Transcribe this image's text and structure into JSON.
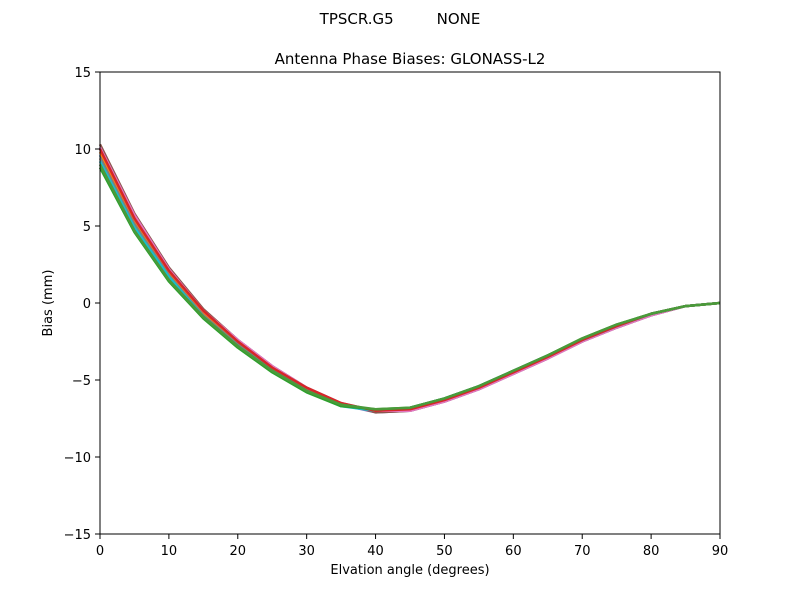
{
  "chart_data": {
    "type": "line",
    "suptitle": "TPSCR.G5         NONE",
    "title": "Antenna Phase Biases: GLONASS-L2",
    "xlabel": "Elvation angle (degrees)",
    "ylabel": "Bias (mm)",
    "xlim": [
      0,
      90
    ],
    "ylim": [
      -15,
      15
    ],
    "xticks": [
      0,
      10,
      20,
      30,
      40,
      50,
      60,
      70,
      80,
      90
    ],
    "yticks": [
      -15,
      -10,
      -5,
      0,
      5,
      10,
      15
    ],
    "xtick_labels": [
      "0",
      "10",
      "20",
      "30",
      "40",
      "50",
      "60",
      "70",
      "80",
      "90"
    ],
    "ytick_labels": [
      "−15",
      "−10",
      "−5",
      "0",
      "5",
      "10",
      "15"
    ],
    "grid": false,
    "x": [
      0,
      5,
      10,
      15,
      20,
      25,
      30,
      35,
      40,
      45,
      50,
      55,
      60,
      65,
      70,
      75,
      80,
      85,
      90
    ],
    "series": [
      {
        "color": "#1f77b4",
        "values": [
          9.6,
          5.2,
          1.9,
          -0.7,
          -2.6,
          -4.3,
          -5.6,
          -6.6,
          -7.0,
          -6.9,
          -6.3,
          -5.5,
          -4.5,
          -3.5,
          -2.4,
          -1.5,
          -0.7,
          -0.2,
          0.0
        ]
      },
      {
        "color": "#ff7f0e",
        "values": [
          9.8,
          5.4,
          2.0,
          -0.6,
          -2.5,
          -4.2,
          -5.6,
          -6.6,
          -7.0,
          -6.9,
          -6.3,
          -5.5,
          -4.5,
          -3.5,
          -2.4,
          -1.5,
          -0.7,
          -0.2,
          0.0
        ]
      },
      {
        "color": "#9467bd",
        "values": [
          10.1,
          5.6,
          2.2,
          -0.5,
          -2.4,
          -4.1,
          -5.5,
          -6.6,
          -7.1,
          -7.0,
          -6.4,
          -5.6,
          -4.6,
          -3.6,
          -2.5,
          -1.6,
          -0.8,
          -0.2,
          0.0
        ]
      },
      {
        "color": "#8c564b",
        "values": [
          10.3,
          5.8,
          2.3,
          -0.4,
          -2.4,
          -4.1,
          -5.5,
          -6.5,
          -7.1,
          -7.0,
          -6.4,
          -5.6,
          -4.6,
          -3.6,
          -2.5,
          -1.6,
          -0.8,
          -0.2,
          0.0
        ]
      },
      {
        "color": "#e377c2",
        "values": [
          10.1,
          5.7,
          2.2,
          -0.5,
          -2.4,
          -4.1,
          -5.5,
          -6.5,
          -7.0,
          -7.0,
          -6.4,
          -5.6,
          -4.6,
          -3.6,
          -2.5,
          -1.6,
          -0.8,
          -0.2,
          0.0
        ]
      },
      {
        "color": "#7f7f7f",
        "values": [
          9.4,
          5.1,
          1.8,
          -0.8,
          -2.7,
          -4.3,
          -5.7,
          -6.6,
          -7.0,
          -6.8,
          -6.2,
          -5.4,
          -4.4,
          -3.4,
          -2.4,
          -1.5,
          -0.7,
          -0.2,
          0.0
        ]
      },
      {
        "color": "#17becf",
        "values": [
          9.2,
          4.9,
          1.7,
          -0.9,
          -2.8,
          -4.4,
          -5.7,
          -6.7,
          -7.0,
          -6.8,
          -6.2,
          -5.4,
          -4.4,
          -3.4,
          -2.4,
          -1.5,
          -0.7,
          -0.2,
          0.0
        ]
      },
      {
        "color": "#d62728",
        "values": [
          10.0,
          5.5,
          2.1,
          -0.5,
          -2.5,
          -4.2,
          -5.5,
          -6.5,
          -7.0,
          -6.9,
          -6.3,
          -5.5,
          -4.5,
          -3.5,
          -2.4,
          -1.5,
          -0.7,
          -0.2,
          0.0
        ]
      },
      {
        "color": "#2ca02c",
        "values": [
          8.8,
          4.6,
          1.4,
          -1.0,
          -2.9,
          -4.5,
          -5.8,
          -6.7,
          -6.9,
          -6.8,
          -6.2,
          -5.4,
          -4.4,
          -3.4,
          -2.3,
          -1.4,
          -0.7,
          -0.2,
          0.0
        ]
      },
      {
        "color": "#4a9a3a",
        "values": [
          9.0,
          4.7,
          1.5,
          -0.9,
          -2.8,
          -4.4,
          -5.7,
          -6.6,
          -6.9,
          -6.8,
          -6.2,
          -5.4,
          -4.4,
          -3.4,
          -2.3,
          -1.4,
          -0.7,
          -0.2,
          0.0
        ]
      }
    ]
  }
}
